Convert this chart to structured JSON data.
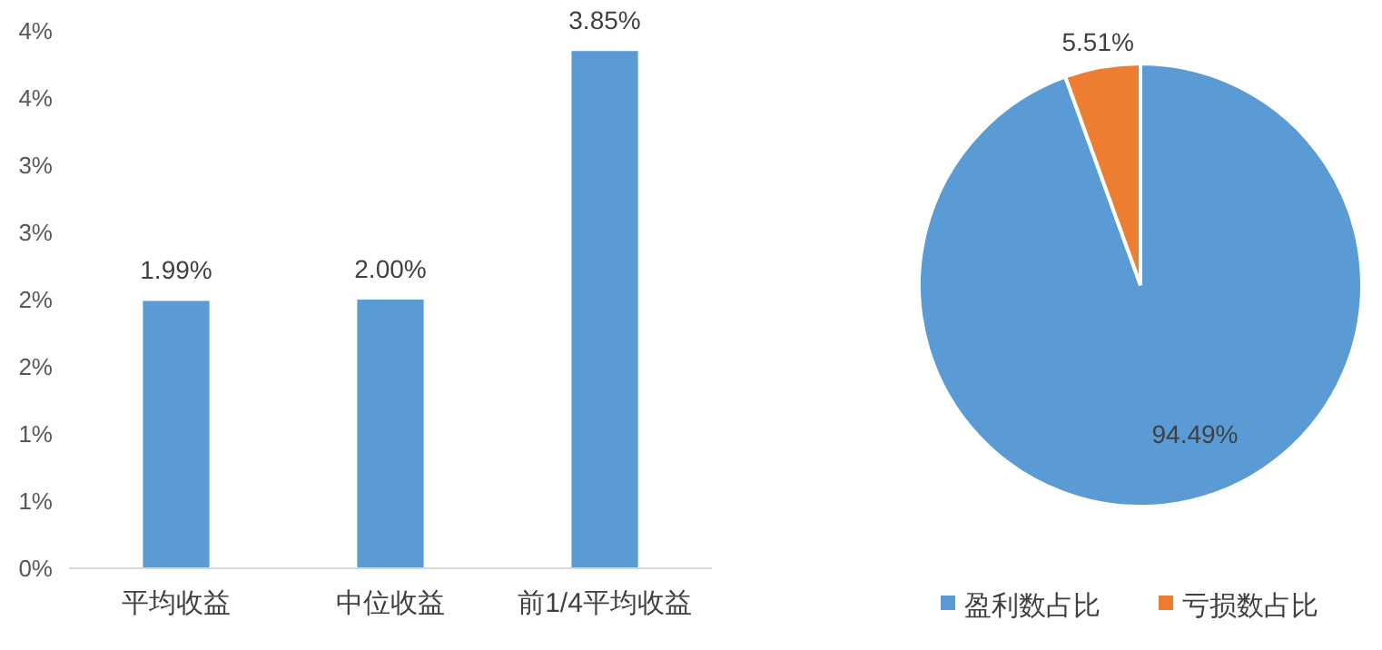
{
  "chart_data": [
    {
      "type": "bar",
      "categories": [
        "平均收益",
        "中位收益",
        "前1/4平均收益"
      ],
      "values": [
        1.99,
        2.0,
        3.85
      ],
      "value_labels": [
        "1.99%",
        "2.00%",
        "3.85%"
      ],
      "color": "#5b9bd5",
      "ylim": [
        0,
        4.0
      ],
      "yticks": [
        {
          "value": 0,
          "label": "0%"
        },
        {
          "value": 0.5,
          "label": "1%"
        },
        {
          "value": 1,
          "label": "1%"
        },
        {
          "value": 1.5,
          "label": "2%"
        },
        {
          "value": 2,
          "label": "2%"
        },
        {
          "value": 2.5,
          "label": "3%"
        },
        {
          "value": 3,
          "label": "3%"
        },
        {
          "value": 3.5,
          "label": "4%"
        },
        {
          "value": 4,
          "label": "4%"
        }
      ],
      "grid": false
    },
    {
      "type": "pie",
      "categories": [
        "盈利数占比",
        "亏损数占比"
      ],
      "values": [
        94.49,
        5.51
      ],
      "colors": [
        "#5b9bd5",
        "#ed7d31"
      ],
      "value_labels": [
        "94.49%",
        "5.51%"
      ],
      "legend": "bottom"
    }
  ]
}
